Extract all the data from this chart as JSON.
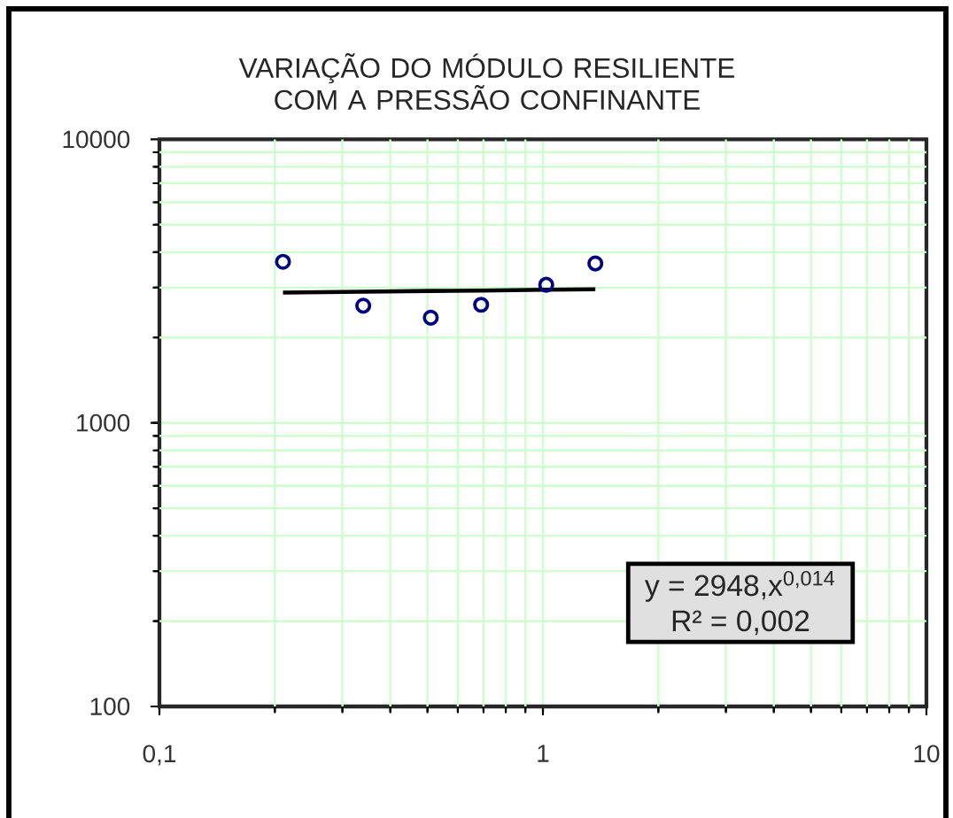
{
  "chart_data": {
    "type": "scatter",
    "title": "VARIAÇÃO DO MÓDULO RESILIENTE COM A PRESSÃO CONFINANTE",
    "annotations": [
      "y = 2948,x$^{0,014}$",
      "R² = 0,002"
    ],
    "series": [
      {
        "color": "#000080",
        "marker": "circle",
        "x": [
          0.21,
          0.34,
          0.51,
          0.69,
          1.02,
          1.37
        ],
        "values": [
          3700,
          2590,
          2350,
          2610,
          3070,
          3650
        ]
      },
      {
        "type": "line",
        "color": "#000000",
        "marker": "none",
        "x": [
          0.21,
          0.34,
          0.51,
          0.69,
          1.02,
          1.37
        ],
        "values": [
          2880,
          2900,
          2920,
          2930,
          2950,
          2960
        ]
      }
    ],
    "log": "xy",
    "xlim": [
      0.1,
      10
    ],
    "ylim": [
      100,
      10000
    ],
    "xticks": [
      {
        "value": 0.1,
        "label": "0,1"
      },
      {
        "value": 0.2,
        "label": null
      },
      {
        "value": 0.3,
        "label": null
      },
      {
        "value": 0.4,
        "label": null
      },
      {
        "value": 0.5,
        "label": null
      },
      {
        "value": 0.6,
        "label": null
      },
      {
        "value": 0.7,
        "label": null
      },
      {
        "value": 0.8,
        "label": null
      },
      {
        "value": 0.9,
        "label": null
      },
      1,
      {
        "value": 2,
        "label": null
      },
      {
        "value": 3,
        "label": null
      },
      {
        "value": 4,
        "label": null
      },
      {
        "value": 5,
        "label": null
      },
      {
        "value": 6,
        "label": null
      },
      {
        "value": 7,
        "label": null
      },
      {
        "value": 8,
        "label": null
      },
      {
        "value": 9,
        "label": null
      },
      10
    ],
    "yticks": [
      100,
      {
        "value": 200,
        "label": null
      },
      {
        "value": 300,
        "label": null
      },
      {
        "value": 400,
        "label": null
      },
      {
        "value": 500,
        "label": null
      },
      {
        "value": 600,
        "label": null
      },
      {
        "value": 700,
        "label": null
      },
      {
        "value": 800,
        "label": null
      },
      {
        "value": 900,
        "label": null
      },
      1000,
      {
        "value": 2000,
        "label": null
      },
      {
        "value": 3000,
        "label": null
      },
      {
        "value": 4000,
        "label": null
      },
      {
        "value": 5000,
        "label": null
      },
      {
        "value": 6000,
        "label": null
      },
      {
        "value": 7000,
        "label": null
      },
      {
        "value": 8000,
        "label": null
      },
      {
        "value": 9000,
        "label": null
      },
      10000
    ],
    "grid": true
  }
}
